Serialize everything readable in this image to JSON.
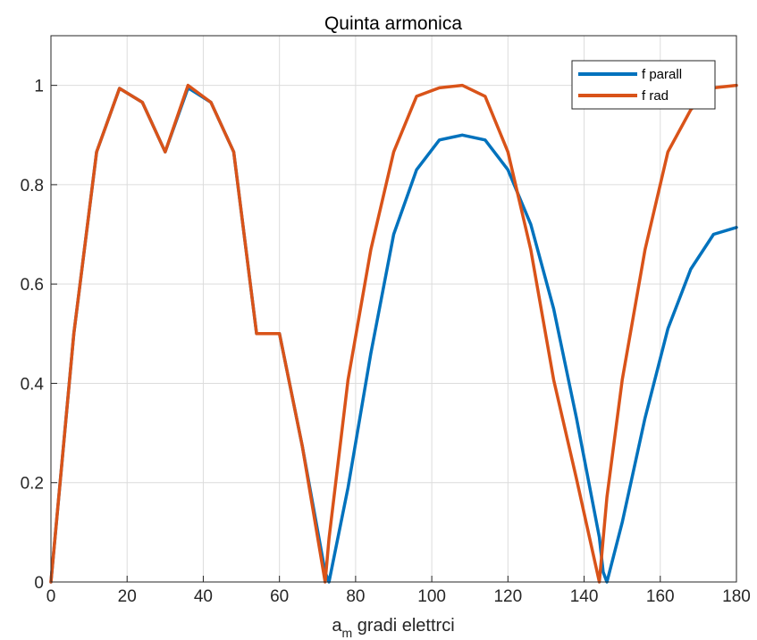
{
  "chart_data": {
    "type": "line",
    "title": "Quinta armonica",
    "xlabel_main": "a",
    "xlabel_sub": "m",
    "xlabel_rest": " gradi elettrci",
    "ylabel": "",
    "xlim": [
      0,
      180
    ],
    "ylim": [
      0,
      1.1
    ],
    "xticks": [
      0,
      20,
      40,
      60,
      80,
      100,
      120,
      140,
      160,
      180
    ],
    "yticks": [
      0,
      0.2,
      0.4,
      0.6,
      0.8,
      1
    ],
    "ytick_labels": [
      "0",
      "0.2",
      "0.4",
      "0.6",
      "0.8",
      "1"
    ],
    "grid": true,
    "legend_position": "top-right",
    "x": [
      0,
      6,
      12,
      18,
      24,
      30,
      36,
      42,
      48,
      54,
      60,
      66,
      72,
      73,
      78,
      84,
      90,
      96,
      102,
      108,
      114,
      120,
      126,
      132,
      138,
      144,
      145,
      146,
      150,
      156,
      162,
      168,
      174,
      180
    ],
    "series": [
      {
        "name": "f parall",
        "color": "#0072BD",
        "values": [
          0,
          0.5,
          0.866,
          0.994,
          0.966,
          0.866,
          0.995,
          0.966,
          0.866,
          0.5,
          0.5,
          0.274,
          0.02,
          0,
          0.19,
          0.46,
          0.7,
          0.83,
          0.89,
          0.9,
          0.89,
          0.83,
          0.72,
          0.55,
          0.33,
          0.09,
          0.02,
          0,
          0.12,
          0.33,
          0.51,
          0.63,
          0.7,
          0.714
        ]
      },
      {
        "name": "f rad",
        "color": "#D95319",
        "values": [
          0,
          0.5,
          0.866,
          0.994,
          0.966,
          0.866,
          1.0,
          0.966,
          0.866,
          0.5,
          0.5,
          0.274,
          0,
          0.087,
          0.407,
          0.669,
          0.866,
          0.978,
          0.995,
          1.0,
          0.978,
          0.866,
          0.669,
          0.407,
          0.208,
          0,
          0.087,
          0.171,
          0.407,
          0.669,
          0.866,
          0.951,
          0.995,
          1.0
        ]
      }
    ]
  }
}
